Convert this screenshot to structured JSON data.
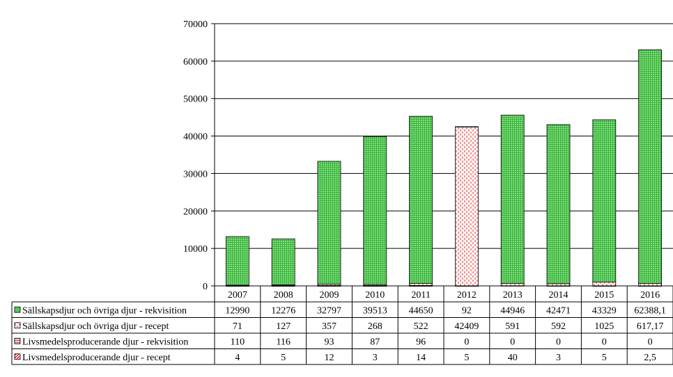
{
  "chart_data": {
    "type": "bar",
    "stacked": true,
    "categories": [
      "2007",
      "2008",
      "2009",
      "2010",
      "2011",
      "2012",
      "2013",
      "2014",
      "2015",
      "2016"
    ],
    "ylim": [
      0,
      70000
    ],
    "yticks": [
      "0",
      "10000",
      "20000",
      "30000",
      "40000",
      "50000",
      "60000",
      "70000"
    ],
    "grid": true,
    "legend_placement": "data-table-left",
    "series": [
      {
        "name": "Livsmedelsproducerande djur - recept",
        "pattern": "diagonal-red",
        "color": "#ff0000",
        "values": [
          4,
          5,
          12,
          3,
          14,
          5,
          40,
          3,
          5,
          2.5
        ],
        "labels": [
          "4",
          "5",
          "12",
          "3",
          "14",
          "5",
          "40",
          "3",
          "5",
          "2,5"
        ]
      },
      {
        "name": "Livsmedelsproducerande djur - rekvisition",
        "pattern": "grid-red",
        "color": "#cc6666",
        "values": [
          110,
          116,
          93,
          87,
          96,
          0,
          0,
          0,
          0,
          0
        ],
        "labels": [
          "110",
          "116",
          "93",
          "87",
          "96",
          "0",
          "0",
          "0",
          "0",
          "0"
        ]
      },
      {
        "name": "Sällskapsdjur och övriga djur - recept",
        "pattern": "dots-red",
        "color": "#ffd9d9",
        "values": [
          71,
          127,
          357,
          268,
          522,
          42409,
          591,
          592,
          1025,
          617.17
        ],
        "labels": [
          "71",
          "127",
          "357",
          "268",
          "522",
          "42409",
          "591",
          "592",
          "1025",
          "617,17"
        ]
      },
      {
        "name": "Sällskapsdjur och övriga djur - rekvisition",
        "pattern": "grid-green",
        "color": "#7fdf7f",
        "values": [
          12990,
          12276,
          32797,
          39513,
          44650,
          92,
          44946,
          42471,
          43329,
          62388.1
        ],
        "labels": [
          "12990",
          "12276",
          "32797",
          "39513",
          "44650",
          "92",
          "44946",
          "42471",
          "43329",
          "62388,1"
        ]
      }
    ],
    "table_row_order": [
      "Sällskapsdjur och övriga djur - rekvisition",
      "Sällskapsdjur och övriga djur - recept",
      "Livsmedelsproducerande djur - rekvisition",
      "Livsmedelsproducerande djur - recept"
    ]
  }
}
